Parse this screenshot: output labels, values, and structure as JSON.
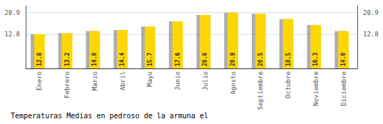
{
  "chart_data": {
    "type": "bar",
    "title": "Temperaturas Medias en pedroso de la armuna el",
    "categories": [
      "Enero",
      "Febrero",
      "Marzo",
      "Abril",
      "Mayo",
      "Junio",
      "Julio",
      "Agosto",
      "Septiembre",
      "Octubre",
      "Noviembre",
      "Diciembre"
    ],
    "values": [
      12.8,
      13.2,
      14.0,
      14.4,
      15.7,
      17.6,
      20.0,
      20.9,
      20.5,
      18.5,
      16.3,
      14.0
    ],
    "value_labels": [
      "12.8",
      "13.2",
      "14.0",
      "14.4",
      "15.7",
      "17.6",
      "20.0",
      "20.9",
      "20.5",
      "18.5",
      "16.3",
      "14.0"
    ],
    "color": "#FFD700",
    "ylim": [
      0,
      23.5
    ],
    "yticks": [
      12.8,
      20.9
    ],
    "y2lim": [
      0,
      23.5
    ],
    "y2ticks": [
      12.8,
      20.9
    ],
    "grid": true,
    "data_labels": true
  }
}
